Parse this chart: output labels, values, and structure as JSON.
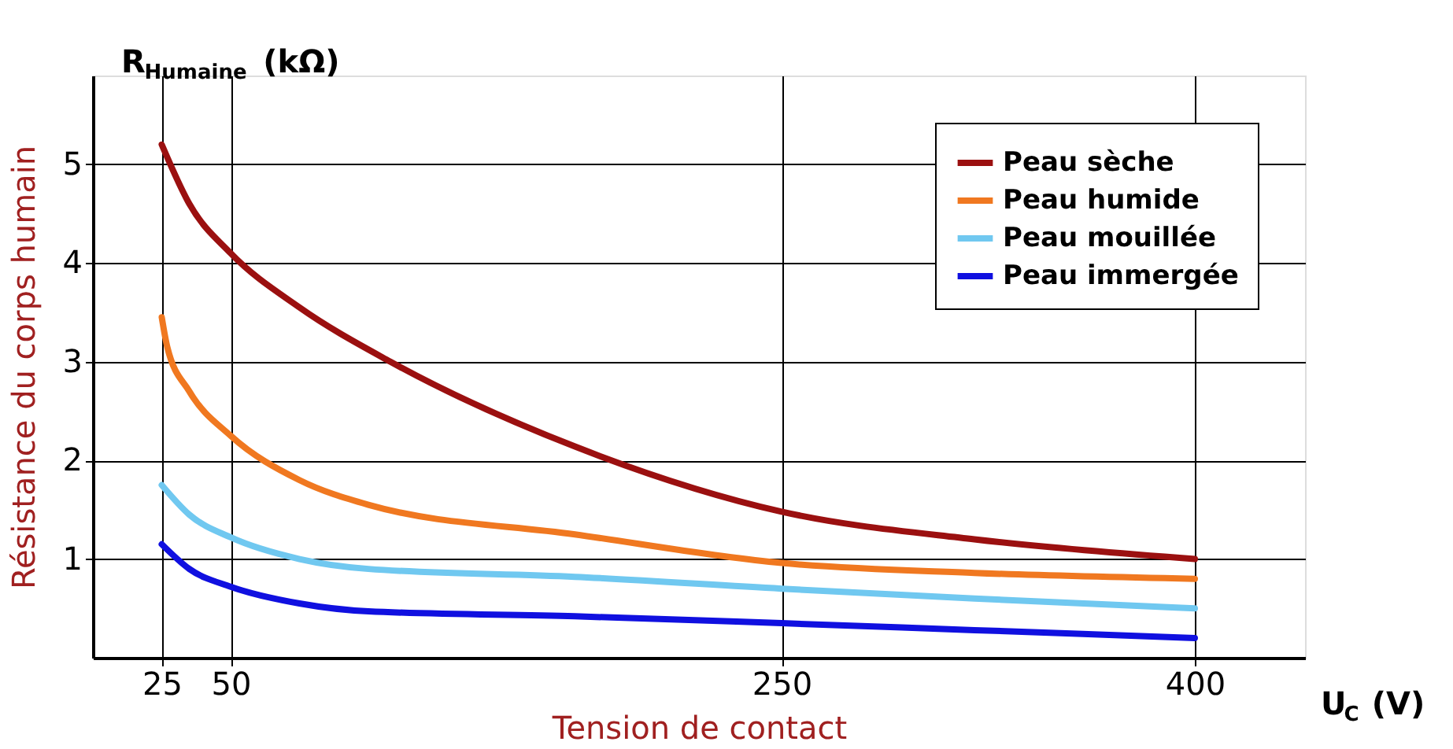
{
  "chart_data": {
    "type": "line",
    "xlabel": "Tension de contact",
    "ylabel": "Résistance du corps humain",
    "annotations": [
      "R$_{Humaine}$ (kΩ)",
      "U$_{C}$ (V)"
    ],
    "xlim": [
      0,
      440
    ],
    "xticks": [
      25,
      50,
      250,
      400
    ],
    "ylim": [
      0,
      5.9
    ],
    "yticks": [
      1,
      2,
      3,
      4,
      5
    ],
    "grid": true,
    "legend": "top right",
    "line_style": "solid",
    "marker": "none",
    "series": [
      {
        "name": "Peau sèche",
        "color": "#9b1010",
        "x": [
          25,
          35,
          50,
          75,
          108,
          175,
          250,
          320,
          400
        ],
        "values": [
          5.2,
          4.6,
          4.1,
          3.55,
          3.0,
          2.14,
          1.48,
          1.2,
          1.0
        ]
      },
      {
        "name": "Peau humide",
        "color": "#f07820",
        "x": [
          25,
          27,
          35,
          50,
          75,
          100,
          175,
          250,
          320,
          400
        ],
        "values": [
          3.45,
          3.15,
          2.7,
          2.25,
          1.8,
          1.55,
          1.25,
          0.96,
          0.86,
          0.8
        ]
      },
      {
        "name": "Peau mouillée",
        "color": "#70c8f0",
        "x": [
          25,
          35,
          50,
          75,
          100,
          175,
          250,
          320,
          400
        ],
        "values": [
          1.75,
          1.45,
          1.22,
          1.0,
          0.9,
          0.82,
          0.7,
          0.6,
          0.5
        ]
      },
      {
        "name": "Peau immergée",
        "color": "#1010e0",
        "x": [
          25,
          35,
          50,
          75,
          100,
          175,
          250,
          320,
          400
        ],
        "values": [
          1.15,
          0.9,
          0.72,
          0.55,
          0.47,
          0.42,
          0.35,
          0.28,
          0.2
        ]
      }
    ]
  }
}
